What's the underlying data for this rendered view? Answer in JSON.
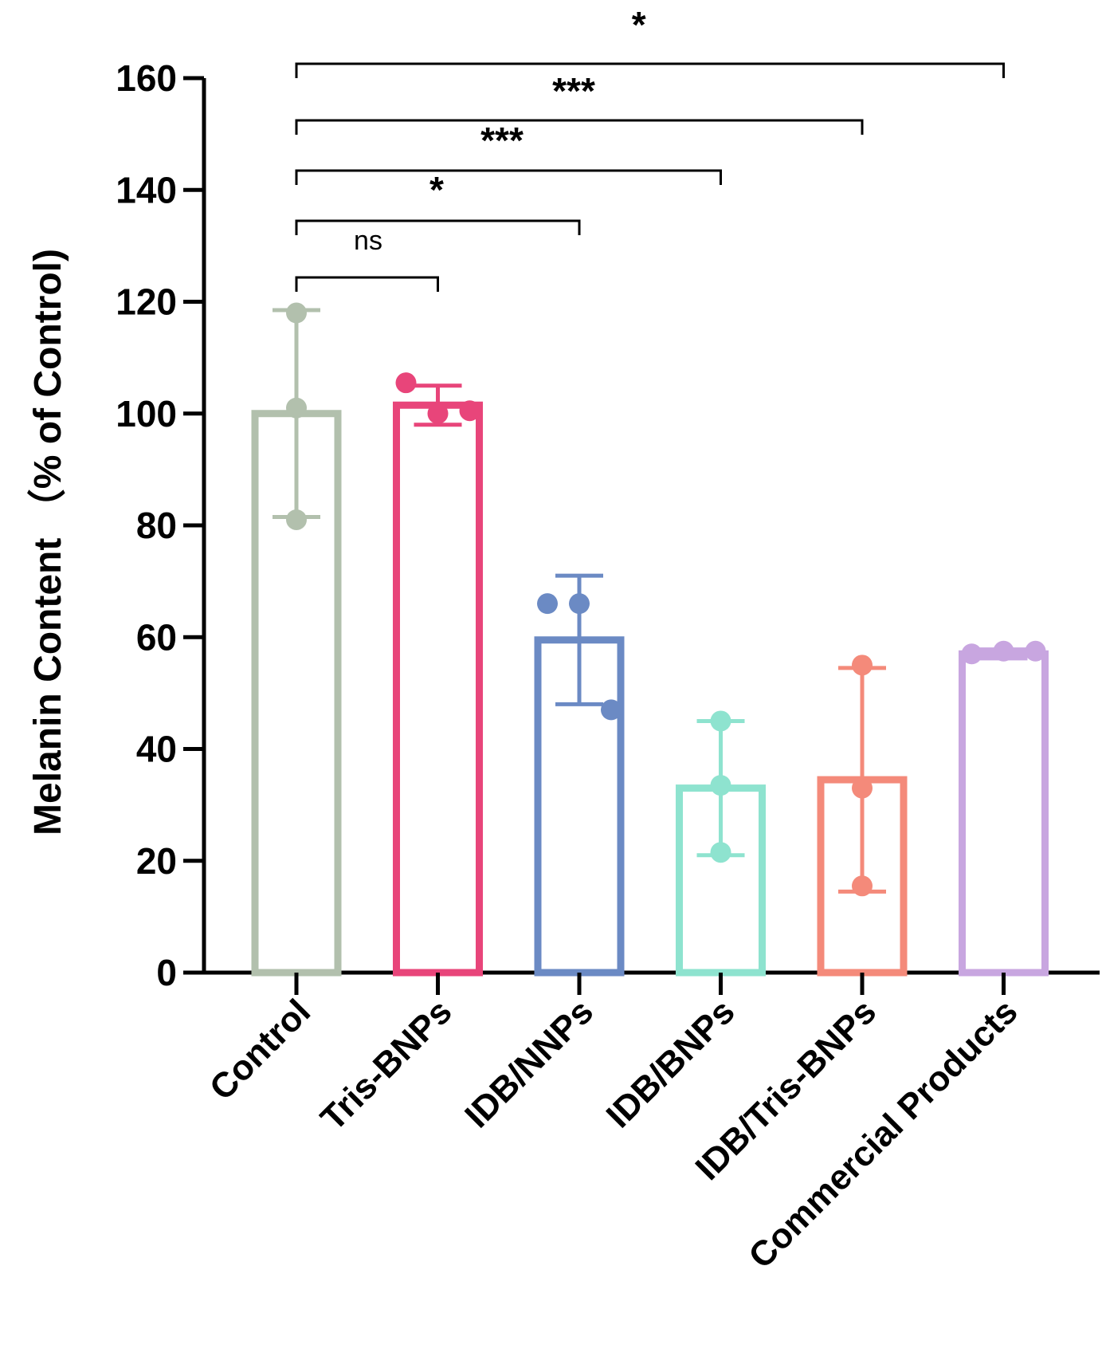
{
  "chart_data": {
    "type": "bar",
    "title": "",
    "xlabel": "",
    "ylabel": "Melanin Content （% of Control)",
    "ylim": [
      0,
      160
    ],
    "yticks": [
      0,
      20,
      40,
      60,
      80,
      100,
      120,
      140,
      160
    ],
    "categories": [
      "Control",
      "Tris-BNPs",
      "IDB/NNPs",
      "IDB/BNPs",
      "IDB/Tris-BNPs",
      "Commercial Products"
    ],
    "values": [
      100,
      101.5,
      59.5,
      33,
      34.5,
      57
    ],
    "errors": [
      18.5,
      3.5,
      11.5,
      12,
      20,
      0.8
    ],
    "colors": [
      "#b2c0ad",
      "#e8457a",
      "#6b8ac4",
      "#8ee3cf",
      "#f48a7a",
      "#c8a6e0"
    ],
    "points": [
      [
        118,
        101,
        81
      ],
      [
        105.5,
        100,
        100.5
      ],
      [
        66,
        66,
        47
      ],
      [
        45,
        33.5,
        21.5
      ],
      [
        55,
        33,
        15.5
      ],
      [
        57,
        57.5,
        57.5
      ]
    ],
    "comparisons": [
      {
        "from": 0,
        "to": 1,
        "label": "",
        "level": 0
      },
      {
        "from": 0,
        "to": 2,
        "label": "ns",
        "level": 1
      },
      {
        "from": 0,
        "to": 3,
        "label": "*",
        "level": 2
      },
      {
        "from": 0,
        "to": 4,
        "label": "***",
        "level": 3
      },
      {
        "from": 0,
        "to": 5,
        "label": "***",
        "level": 4
      },
      {
        "from": 0,
        "to": 5,
        "label": "*",
        "level": 5
      }
    ]
  }
}
